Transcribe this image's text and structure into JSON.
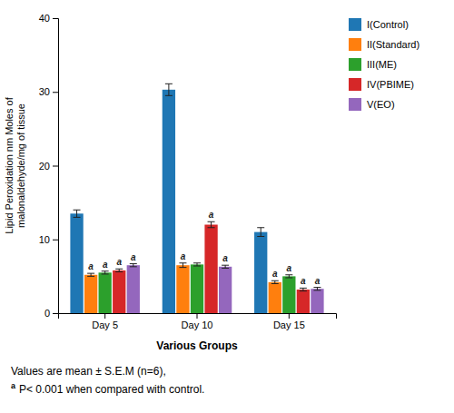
{
  "chart_data": {
    "type": "bar",
    "categories": [
      "Day 5",
      "Day 10",
      "Day 15"
    ],
    "series": [
      {
        "name": "I(Control)",
        "values": [
          13.5,
          30.3,
          11.0
        ],
        "errors": [
          0.5,
          0.8,
          0.6
        ],
        "annotations": [
          null,
          null,
          null
        ]
      },
      {
        "name": "II(Standard)",
        "values": [
          5.2,
          6.5,
          4.2
        ],
        "errors": [
          0.2,
          0.3,
          0.2
        ],
        "annotations": [
          "a",
          "a",
          "a"
        ]
      },
      {
        "name": "III(ME)",
        "values": [
          5.5,
          6.6,
          5.0
        ],
        "errors": [
          0.2,
          0.2,
          0.2
        ],
        "annotations": [
          "a",
          null,
          "a"
        ]
      },
      {
        "name": "IV(PBIME)",
        "values": [
          5.8,
          12.0,
          3.2
        ],
        "errors": [
          0.2,
          0.4,
          0.2
        ],
        "annotations": [
          "a",
          "a",
          "a"
        ]
      },
      {
        "name": "V(EO)",
        "values": [
          6.5,
          6.3,
          3.3
        ],
        "errors": [
          0.2,
          0.2,
          0.2
        ],
        "annotations": [
          "a",
          "a",
          "a"
        ]
      }
    ],
    "xlabel": "Various Groups",
    "ylabel": "Lipid Peroxidation nm Moles of\nmalonaldehyde/mg of tissue",
    "ylim": [
      0,
      40
    ],
    "yticks": [
      0,
      10,
      20,
      30,
      40
    ],
    "grid": false,
    "legend": "right",
    "footnotes": [
      {
        "text": "Values are mean ± S.E.M (n=6),"
      },
      {
        "symbol": "a",
        "text": "P< 0.001 when compared with control."
      }
    ]
  }
}
